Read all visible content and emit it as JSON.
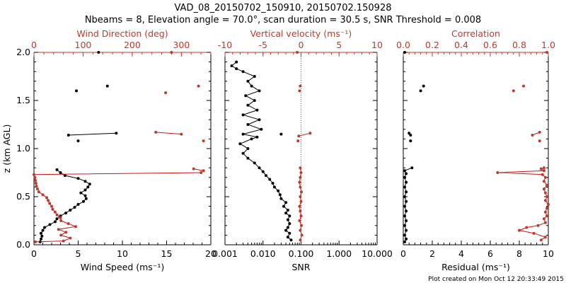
{
  "title_line1": "VAD_08_20150702_150910, 20150702.150928",
  "title_line2": "Nbeams = 8, Elevation angle = 70.0°, scan duration = 30.5 s, SNR Threshold = 0.008",
  "footer": "Plot created on Mon Oct 12 20:33:49 2015",
  "colors": {
    "black": "#000000",
    "red": "#c0392b",
    "red_line": "#d01010"
  },
  "chart_data": [
    {
      "type": "line",
      "panel": "wind",
      "ylabel": "z (km AGL)",
      "ylim": [
        0,
        2
      ],
      "yticks": [
        "0.0",
        "0.5",
        "1.0",
        "1.5",
        "2.0"
      ],
      "bottom_axis": {
        "label": "Wind Speed (ms⁻¹)",
        "range": [
          0,
          20
        ],
        "ticks": [
          "0",
          "5",
          "10",
          "15",
          "20"
        ]
      },
      "top_axis": {
        "label": "Wind Direction (deg)",
        "range": [
          0,
          360
        ],
        "ticks": [
          "0",
          "100",
          "200",
          "300"
        ]
      },
      "series": [
        {
          "name": "Wind Speed",
          "axis": "bottom",
          "color": "black",
          "segments": [
            [
              [
                0.7,
                0.03
              ],
              [
                0.8,
                0.06
              ],
              [
                0.9,
                0.09
              ],
              [
                0.8,
                0.12
              ],
              [
                1.0,
                0.15
              ],
              [
                1.2,
                0.18
              ],
              [
                1.8,
                0.21
              ],
              [
                2.4,
                0.24
              ],
              [
                2.6,
                0.27
              ],
              [
                3.0,
                0.3
              ],
              [
                3.6,
                0.33
              ],
              [
                4.1,
                0.36
              ],
              [
                4.6,
                0.39
              ],
              [
                5.0,
                0.42
              ],
              [
                5.6,
                0.45
              ],
              [
                5.9,
                0.48
              ],
              [
                5.8,
                0.51
              ],
              [
                5.3,
                0.54
              ],
              [
                5.8,
                0.57
              ],
              [
                6.1,
                0.6
              ],
              [
                6.3,
                0.63
              ],
              [
                5.8,
                0.66
              ],
              [
                5.0,
                0.69
              ],
              [
                3.5,
                0.72
              ],
              [
                3.0,
                0.75
              ],
              [
                2.6,
                0.78
              ]
            ],
            [
              [
                3.9,
                1.14
              ],
              [
                9.3,
                1.16
              ]
            ]
          ],
          "points": [
            [
              7.3,
              2.0
            ],
            [
              4.8,
              1.6
            ],
            [
              8.3,
              1.65
            ],
            [
              5.0,
              1.08
            ]
          ]
        },
        {
          "name": "Wind Direction",
          "axis": "top",
          "color": "red",
          "segments": [
            [
              [
                3,
                0.03
              ],
              [
                60,
                0.04
              ],
              [
                74,
                0.07
              ],
              [
                55,
                0.1
              ],
              [
                65,
                0.13
              ],
              [
                50,
                0.16
              ],
              [
                85,
                0.19
              ],
              [
                70,
                0.22
              ],
              [
                55,
                0.25
              ],
              [
                54,
                0.28
              ],
              [
                47,
                0.31
              ],
              [
                43,
                0.34
              ],
              [
                38,
                0.37
              ],
              [
                36,
                0.4
              ],
              [
                32,
                0.43
              ],
              [
                29,
                0.46
              ],
              [
                26,
                0.49
              ],
              [
                18,
                0.52
              ],
              [
                10,
                0.55
              ],
              [
                7,
                0.58
              ],
              [
                5,
                0.61
              ],
              [
                4,
                0.64
              ],
              [
                3,
                0.67
              ],
              [
                2,
                0.7
              ],
              [
                0,
                0.73
              ],
              [
                340,
                0.75
              ],
              [
                345,
                0.77
              ],
              [
                325,
                0.79
              ]
            ],
            [
              [
                248,
                1.17
              ],
              [
                300,
                1.15
              ]
            ]
          ],
          "points": [
            [
              280,
              2.0
            ],
            [
              268,
              1.58
            ],
            [
              335,
              1.65
            ],
            [
              345,
              1.08
            ]
          ]
        }
      ]
    },
    {
      "type": "line",
      "panel": "snr",
      "ylim": [
        0,
        2
      ],
      "bottom_axis": {
        "label": "SNR",
        "scale": "log",
        "range": [
          0.001,
          10
        ],
        "ticks": [
          "0.001",
          "0.010",
          "0.100",
          "1.000",
          "10.000"
        ]
      },
      "top_axis": {
        "label": "Vertical velocity (ms⁻¹)",
        "range": [
          -10,
          10
        ],
        "ticks": [
          "-10",
          "-5",
          "0",
          "5",
          "10"
        ]
      },
      "series": [
        {
          "name": "SNR",
          "axis": "bottom",
          "color": "black",
          "segments": [
            [
              [
                0.055,
                0.05
              ],
              [
                0.045,
                0.08
              ],
              [
                0.05,
                0.12
              ],
              [
                0.04,
                0.15
              ],
              [
                0.045,
                0.18
              ],
              [
                0.05,
                0.22
              ],
              [
                0.045,
                0.26
              ],
              [
                0.05,
                0.3
              ],
              [
                0.04,
                0.33
              ],
              [
                0.045,
                0.36
              ],
              [
                0.035,
                0.4
              ],
              [
                0.04,
                0.44
              ],
              [
                0.03,
                0.48
              ],
              [
                0.028,
                0.52
              ],
              [
                0.025,
                0.56
              ],
              [
                0.02,
                0.6
              ],
              [
                0.018,
                0.64
              ],
              [
                0.015,
                0.68
              ],
              [
                0.012,
                0.72
              ],
              [
                0.01,
                0.76
              ],
              [
                0.008,
                0.8
              ],
              [
                0.006,
                0.85
              ],
              [
                0.004,
                0.9
              ],
              [
                0.003,
                0.95
              ],
              [
                0.004,
                1.0
              ],
              [
                0.0025,
                1.05
              ],
              [
                0.005,
                1.1
              ],
              [
                0.007,
                1.12
              ],
              [
                0.003,
                1.15
              ],
              [
                0.009,
                1.2
              ],
              [
                0.004,
                1.25
              ],
              [
                0.008,
                1.3
              ],
              [
                0.003,
                1.35
              ],
              [
                0.007,
                1.4
              ],
              [
                0.004,
                1.45
              ],
              [
                0.006,
                1.5
              ],
              [
                0.0035,
                1.55
              ],
              [
                0.008,
                1.6
              ],
              [
                0.005,
                1.65
              ],
              [
                0.004,
                1.7
              ],
              [
                0.006,
                1.75
              ],
              [
                0.003,
                1.8
              ],
              [
                0.002,
                1.83
              ],
              [
                0.0015,
                1.86
              ],
              [
                0.002,
                1.9
              ]
            ]
          ],
          "points": [
            [
              0.03,
              1.15
            ]
          ]
        },
        {
          "name": "Vertical velocity",
          "axis": "top",
          "color": "red",
          "segments": [
            [
              [
                -0.1,
                0.05
              ],
              [
                0.1,
                0.1
              ],
              [
                -0.1,
                0.15
              ],
              [
                0.05,
                0.2
              ],
              [
                -0.2,
                0.25
              ],
              [
                0.0,
                0.3
              ],
              [
                -0.1,
                0.35
              ],
              [
                -0.2,
                0.4
              ],
              [
                0.0,
                0.45
              ],
              [
                -0.1,
                0.5
              ],
              [
                0.05,
                0.55
              ],
              [
                -0.1,
                0.6
              ],
              [
                -0.2,
                0.65
              ],
              [
                -0.1,
                0.7
              ],
              [
                0.0,
                0.75
              ],
              [
                -0.1,
                0.8
              ]
            ],
            [
              [
                -0.3,
                1.13
              ],
              [
                1.2,
                1.16
              ]
            ]
          ],
          "points": [
            [
              -0.2,
              1.6
            ],
            [
              -0.1,
              1.65
            ],
            [
              -0.4,
              1.08
            ],
            [
              -0.5,
              2.0
            ]
          ],
          "zero_line": true
        }
      ]
    },
    {
      "type": "line",
      "panel": "correlation",
      "ylim": [
        0,
        2
      ],
      "bottom_axis": {
        "label": "Residual (ms⁻¹)",
        "range": [
          0,
          10
        ],
        "ticks": [
          "0",
          "2",
          "4",
          "6",
          "8",
          "10"
        ]
      },
      "top_axis": {
        "label": "Correlation",
        "range": [
          0,
          1
        ],
        "ticks": [
          "0.0",
          "0.2",
          "0.4",
          "0.6",
          "0.8",
          "1.0"
        ]
      },
      "series": [
        {
          "name": "Residual",
          "axis": "bottom",
          "color": "black",
          "segments": [
            [
              [
                0.1,
                0.03
              ],
              [
                0.2,
                0.06
              ],
              [
                0.1,
                0.1
              ],
              [
                0.2,
                0.15
              ],
              [
                0.1,
                0.2
              ],
              [
                0.2,
                0.25
              ],
              [
                0.1,
                0.3
              ],
              [
                0.2,
                0.35
              ],
              [
                0.1,
                0.4
              ],
              [
                0.2,
                0.45
              ],
              [
                0.1,
                0.5
              ],
              [
                0.2,
                0.55
              ],
              [
                0.1,
                0.6
              ],
              [
                0.2,
                0.65
              ],
              [
                0.1,
                0.7
              ],
              [
                0.2,
                0.74
              ],
              [
                0.1,
                0.77
              ],
              [
                0.6,
                0.8
              ]
            ],
            [
              [
                0.5,
                1.14
              ],
              [
                0.4,
                1.16
              ]
            ]
          ],
          "points": [
            [
              0.1,
              2.0
            ],
            [
              1.2,
              1.6
            ],
            [
              1.4,
              1.65
            ],
            [
              0.5,
              1.08
            ]
          ]
        },
        {
          "name": "Correlation",
          "axis": "top",
          "color": "red",
          "segments": [
            [
              [
                0.95,
                0.05
              ],
              [
                0.98,
                0.08
              ],
              [
                0.9,
                0.12
              ],
              [
                0.8,
                0.15
              ],
              [
                0.85,
                0.18
              ],
              [
                0.93,
                0.2
              ],
              [
                0.98,
                0.23
              ],
              [
                0.97,
                0.27
              ],
              [
                0.99,
                0.3
              ],
              [
                0.98,
                0.34
              ],
              [
                0.99,
                0.38
              ],
              [
                1.0,
                0.42
              ],
              [
                0.98,
                0.46
              ],
              [
                0.99,
                0.5
              ],
              [
                0.98,
                0.54
              ],
              [
                0.97,
                0.58
              ],
              [
                0.99,
                0.62
              ],
              [
                0.97,
                0.66
              ],
              [
                0.98,
                0.7
              ],
              [
                0.96,
                0.73
              ],
              [
                0.65,
                0.75
              ],
              [
                0.97,
                0.77
              ],
              [
                0.95,
                0.79
              ],
              [
                0.97,
                0.8
              ]
            ],
            [
              [
                0.89,
                1.14
              ],
              [
                0.94,
                1.17
              ]
            ]
          ],
          "points": [
            [
              0.99,
              2.0
            ],
            [
              0.76,
              1.6
            ],
            [
              0.83,
              1.65
            ],
            [
              0.94,
              1.08
            ]
          ]
        }
      ]
    }
  ]
}
